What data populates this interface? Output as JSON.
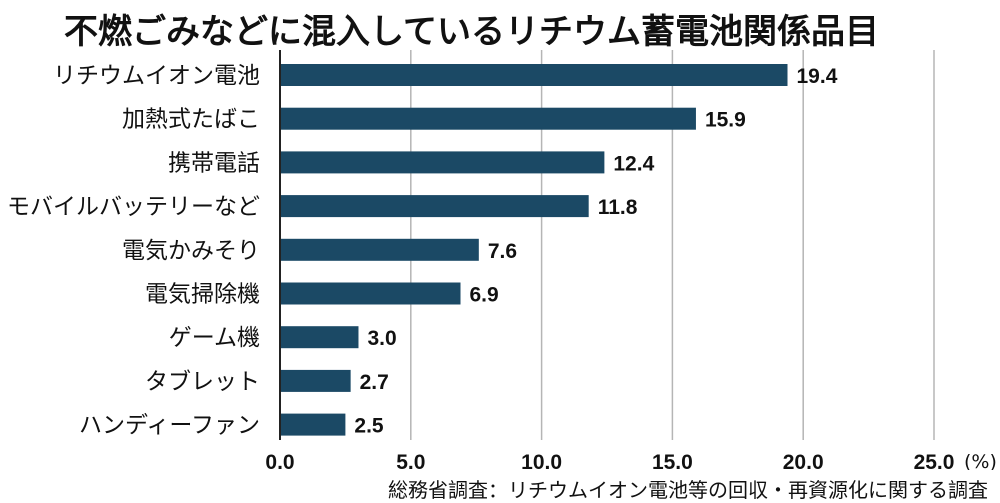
{
  "title": "不燃ごみなどに混入しているリチウム蓄電池関係品目",
  "source": "総務省調査：リチウムイオン電池等の回収・再資源化に関する調査",
  "colors": {
    "bar": "#1b4965",
    "grid": "#b5b5b5",
    "axis": "#222222"
  },
  "chart_data": {
    "type": "bar",
    "orientation": "horizontal",
    "title": "不燃ごみなどに混入しているリチウム蓄電池関係品目",
    "unit": "(%)",
    "categories": [
      "リチウムイオン電池",
      "加熱式たばこ",
      "携帯電話",
      "モバイルバッテリーなど",
      "電気かみそり",
      "電気掃除機",
      "ゲーム機",
      "タブレット",
      "ハンディーファン"
    ],
    "values": [
      19.4,
      15.9,
      12.4,
      11.8,
      7.6,
      6.9,
      3.0,
      2.7,
      2.5
    ],
    "value_labels": [
      "19.4",
      "15.9",
      "12.4",
      "11.8",
      "7.6",
      "6.9",
      "3.0",
      "2.7",
      "2.5"
    ],
    "xlim": [
      0,
      25
    ],
    "ticks": [
      0,
      5,
      10,
      15,
      20,
      25
    ],
    "tick_labels": [
      "0.0",
      "5.0",
      "10.0",
      "15.0",
      "20.0",
      "25.0"
    ],
    "grid": true
  }
}
